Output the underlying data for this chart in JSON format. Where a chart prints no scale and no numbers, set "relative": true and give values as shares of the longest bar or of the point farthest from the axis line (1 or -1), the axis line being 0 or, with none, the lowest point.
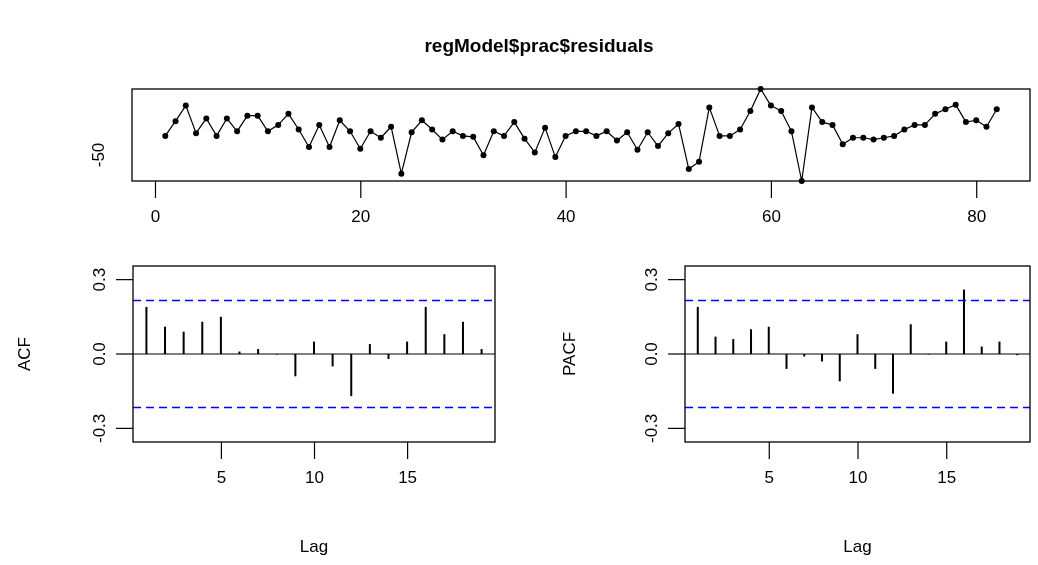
{
  "chart_data": [
    {
      "type": "line",
      "title": "regModel$prac$residuals",
      "relative": true,
      "annotations": [
        "-50"
      ],
      "x": [
        1,
        2,
        3,
        4,
        5,
        6,
        7,
        8,
        9,
        10,
        11,
        12,
        13,
        14,
        15,
        16,
        17,
        18,
        19,
        20,
        21,
        22,
        23,
        24,
        25,
        26,
        27,
        28,
        29,
        30,
        31,
        32,
        33,
        34,
        35,
        36,
        37,
        38,
        39,
        40,
        41,
        42,
        43,
        44,
        45,
        46,
        47,
        48,
        49,
        50,
        51,
        52,
        53,
        54,
        55,
        56,
        57,
        58,
        59,
        60,
        61,
        62,
        63,
        64,
        65,
        66,
        67,
        68,
        69,
        70,
        71,
        72,
        73,
        74,
        75,
        76,
        77,
        78,
        79,
        80,
        81,
        82
      ],
      "series": [
        {
          "color": "#000000",
          "values": [
            0.49,
            0.65,
            0.82,
            0.52,
            0.68,
            0.49,
            0.68,
            0.54,
            0.71,
            0.71,
            0.54,
            0.61,
            0.73,
            0.56,
            0.37,
            0.61,
            0.37,
            0.66,
            0.54,
            0.35,
            0.54,
            0.47,
            0.59,
            0.08,
            0.53,
            0.66,
            0.56,
            0.45,
            0.54,
            0.49,
            0.48,
            0.28,
            0.54,
            0.49,
            0.64,
            0.46,
            0.31,
            0.58,
            0.26,
            0.49,
            0.54,
            0.54,
            0.49,
            0.54,
            0.44,
            0.53,
            0.34,
            0.53,
            0.38,
            0.52,
            0.62,
            0.13,
            0.21,
            0.8,
            0.49,
            0.49,
            0.56,
            0.76,
            1,
            0.82,
            0.76,
            0.54,
            0,
            0.8,
            0.64,
            0.61,
            0.4,
            0.47,
            0.47,
            0.45,
            0.47,
            0.49,
            0.56,
            0.61,
            0.61,
            0.73,
            0.78,
            0.83,
            0.64,
            0.66,
            0.59,
            0.78
          ]
        }
      ],
      "marker": "circle",
      "xlim": [
        -2.24,
        85.24
      ],
      "xticks": [
        0,
        20,
        40,
        60,
        80
      ]
    },
    {
      "type": "bar",
      "xlabel": "Lag",
      "ylabel": "ACF",
      "x": [
        1,
        2,
        3,
        4,
        5,
        6,
        7,
        8,
        9,
        10,
        11,
        12,
        13,
        14,
        15,
        16,
        17,
        18,
        19
      ],
      "series": [
        {
          "color": "#000000",
          "values": [
            0.19,
            0.11,
            0.09,
            0.13,
            0.15,
            0.01,
            0.02,
            0,
            -0.09,
            0.05,
            -0.05,
            -0.17,
            0.04,
            -0.02,
            0.05,
            0.19,
            0.08,
            0.13,
            0.02
          ]
        }
      ],
      "xlim": [
        0.28,
        19.72
      ],
      "ylim": [
        -0.355,
        0.355
      ],
      "xticks": [
        5,
        10,
        15
      ],
      "yticks": [
        {
          "value": -0.3,
          "label": "-0.3"
        },
        {
          "value": 0,
          "label": "0.0"
        },
        {
          "value": 0.3,
          "label": "0.3"
        }
      ],
      "ref_lines": [
        {
          "axis": "y",
          "value": 0.216,
          "color": "#0000ff",
          "line_style": "dashed"
        },
        {
          "axis": "y",
          "value": -0.216,
          "color": "#0000ff",
          "line_style": "dashed"
        }
      ]
    },
    {
      "type": "bar",
      "xlabel": "Lag",
      "ylabel": "PACF",
      "x": [
        1,
        2,
        3,
        4,
        5,
        6,
        7,
        8,
        9,
        10,
        11,
        12,
        13,
        14,
        15,
        16,
        17,
        18,
        19
      ],
      "series": [
        {
          "color": "#000000",
          "values": [
            0.19,
            0.07,
            0.06,
            0.1,
            0.11,
            -0.06,
            -0.01,
            -0.03,
            -0.11,
            0.08,
            -0.06,
            -0.16,
            0.12,
            0,
            0.05,
            0.26,
            0.03,
            0.05,
            -0.005
          ]
        }
      ],
      "xlim": [
        0.28,
        19.72
      ],
      "ylim": [
        -0.355,
        0.355
      ],
      "xticks": [
        5,
        10,
        15
      ],
      "yticks": [
        {
          "value": -0.3,
          "label": "-0.3"
        },
        {
          "value": 0,
          "label": "0.0"
        },
        {
          "value": 0.3,
          "label": "0.3"
        }
      ],
      "ref_lines": [
        {
          "axis": "y",
          "value": 0.216,
          "color": "#0000ff",
          "line_style": "dashed"
        },
        {
          "axis": "y",
          "value": -0.216,
          "color": "#0000ff",
          "line_style": "dashed"
        }
      ]
    }
  ]
}
